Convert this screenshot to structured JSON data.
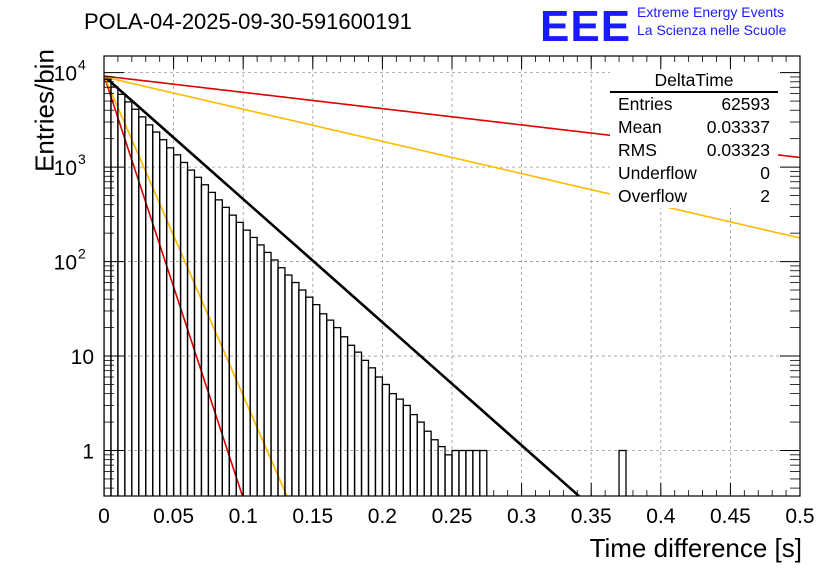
{
  "title": "POLA-04-2025-09-30-591600191",
  "logo": {
    "mark": "EEE",
    "line1": "Extreme Energy Events",
    "line2": "La Scienza nelle Scuole",
    "color": "#1a1aff"
  },
  "stats": {
    "title": "DeltaTime",
    "rows": [
      {
        "label": "Entries",
        "value": "62593"
      },
      {
        "label": "Mean",
        "value": "0.03337"
      },
      {
        "label": "RMS",
        "value": "0.03323"
      },
      {
        "label": "Underflow",
        "value": "0"
      },
      {
        "label": "Overflow",
        "value": "2"
      }
    ]
  },
  "chart_data": {
    "type": "line",
    "title": "POLA-04-2025-09-30-591600191",
    "xlabel": "Time difference [s]",
    "ylabel": "Entries/bin",
    "yscale": "log",
    "xlim": [
      0,
      0.5
    ],
    "ylim": [
      0.33,
      15000
    ],
    "grid": true,
    "x_ticks": [
      "0",
      "0.05",
      "0.1",
      "0.15",
      "0.2",
      "0.25",
      "0.3",
      "0.35",
      "0.4",
      "0.45",
      "0.5"
    ],
    "y_ticks": [
      {
        "value": 1,
        "label": "1"
      },
      {
        "value": 10,
        "label": "10"
      },
      {
        "value": 100,
        "label": "10",
        "exp": "2"
      },
      {
        "value": 1000,
        "label": "10",
        "exp": "3"
      },
      {
        "value": 10000,
        "label": "10",
        "exp": "4"
      }
    ],
    "histogram": {
      "name": "DeltaTime",
      "color": "#000000",
      "bin_width": 0.005,
      "counts": [
        8500,
        7050,
        5900,
        4900,
        4100,
        3400,
        2800,
        2350,
        1950,
        1600,
        1350,
        1120,
        930,
        780,
        650,
        540,
        450,
        375,
        310,
        260,
        215,
        180,
        150,
        125,
        104,
        86,
        72,
        60,
        50,
        42,
        35,
        28,
        24,
        20,
        16,
        13,
        11,
        9,
        7.5,
        6,
        5,
        4,
        3.5,
        3,
        2.4,
        2,
        1.6,
        1.3,
        1.1,
        0.9,
        1,
        1,
        1,
        1,
        1,
        0,
        0,
        0,
        0,
        0,
        0,
        0,
        0,
        0,
        0,
        0,
        0,
        0,
        0,
        0,
        0,
        0,
        0,
        0,
        1,
        0,
        0,
        0,
        0,
        0
      ]
    },
    "series": [
      {
        "name": "fit",
        "color": "#000000",
        "width": 2.6,
        "amplitude": 9200,
        "slope": 30,
        "x_end": 0.345
      },
      {
        "name": "red-fast",
        "color": "#dd0000",
        "width": 1.6,
        "amplitude": 9300,
        "slope": 103
      },
      {
        "name": "yellow-fast",
        "color": "#ffbb00",
        "width": 1.6,
        "amplitude": 9300,
        "slope": 78
      },
      {
        "name": "red-slow",
        "color": "#dd0000",
        "width": 1.6,
        "amplitude": 9200,
        "slope": 3.97
      },
      {
        "name": "yellow-slow",
        "color": "#ffbb00",
        "width": 1.6,
        "amplitude": 9000,
        "slope": 7.85
      }
    ]
  }
}
